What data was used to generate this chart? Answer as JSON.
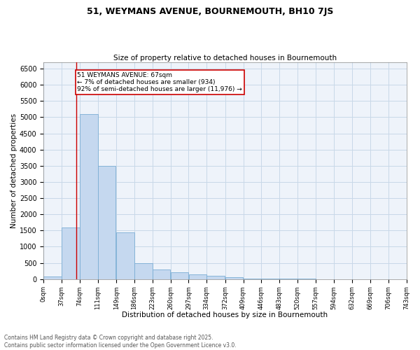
{
  "title_line1": "51, WEYMANS AVENUE, BOURNEMOUTH, BH10 7JS",
  "title_line2": "Size of property relative to detached houses in Bournemouth",
  "xlabel": "Distribution of detached houses by size in Bournemouth",
  "ylabel": "Number of detached properties",
  "bar_color": "#c5d8ef",
  "bar_edge_color": "#7aadd4",
  "grid_color": "#c8d8e8",
  "background_color": "#eef3fa",
  "annotation_box_color": "#cc0000",
  "property_line_color": "#cc0000",
  "property_sqm": 67,
  "annotation_text_line1": "51 WEYMANS AVENUE: 67sqm",
  "annotation_text_line2": "← 7% of detached houses are smaller (934)",
  "annotation_text_line3": "92% of semi-detached houses are larger (11,976) →",
  "bin_edges": [
    0,
    37,
    74,
    111,
    149,
    186,
    223,
    260,
    297,
    334,
    372,
    409,
    446,
    483,
    520,
    557,
    594,
    632,
    669,
    706,
    743
  ],
  "bin_labels": [
    "0sqm",
    "37sqm",
    "74sqm",
    "111sqm",
    "149sqm",
    "186sqm",
    "223sqm",
    "260sqm",
    "297sqm",
    "334sqm",
    "372sqm",
    "409sqm",
    "446sqm",
    "483sqm",
    "520sqm",
    "557sqm",
    "594sqm",
    "632sqm",
    "669sqm",
    "706sqm",
    "743sqm"
  ],
  "bar_heights": [
    75,
    1600,
    5100,
    3500,
    1450,
    500,
    300,
    200,
    150,
    100,
    50,
    20,
    10,
    5,
    3,
    2,
    1,
    1,
    0,
    0
  ],
  "ylim": [
    0,
    6700
  ],
  "yticks": [
    0,
    500,
    1000,
    1500,
    2000,
    2500,
    3000,
    3500,
    4000,
    4500,
    5000,
    5500,
    6000,
    6500
  ],
  "footer_line1": "Contains HM Land Registry data © Crown copyright and database right 2025.",
  "footer_line2": "Contains public sector information licensed under the Open Government Licence v3.0."
}
